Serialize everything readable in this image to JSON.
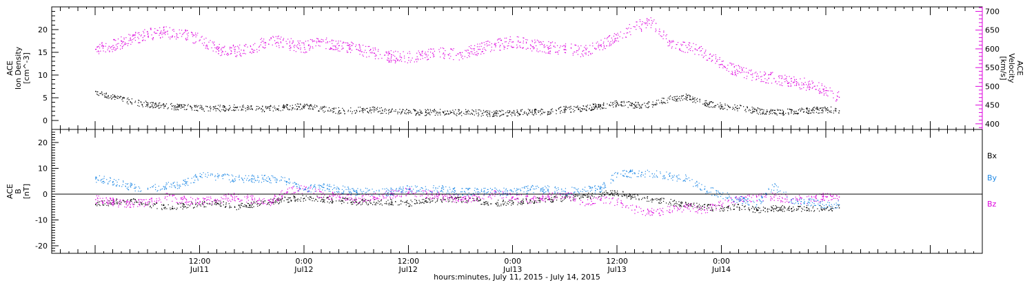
{
  "chart_data": [
    {
      "type": "scatter",
      "panel": "top",
      "ylabel": [
        "ACE",
        "Ion Density",
        "[cm^-3]"
      ],
      "ylim": [
        -2,
        25
      ],
      "y_ticks": [
        0,
        5,
        10,
        15,
        20
      ],
      "ylabel_right": [
        "ACE",
        "Velocity",
        "[km/s]"
      ],
      "ylim_right": [
        385,
        712
      ],
      "y_ticks_right": [
        400,
        450,
        500,
        550,
        600,
        650,
        700
      ],
      "right_axis_color": "#dd00dd",
      "series": [
        {
          "axis": "left",
          "color": "#000000",
          "x": [
            0,
            2,
            4,
            6,
            8,
            10,
            12,
            14,
            16,
            18,
            20,
            22,
            24,
            26,
            28,
            30,
            32,
            34,
            36,
            38,
            40,
            42,
            44,
            46,
            48,
            50,
            52,
            54,
            56,
            58,
            60,
            62,
            64,
            66,
            68,
            70,
            72,
            74,
            76,
            78,
            80,
            82,
            84,
            85.5
          ],
          "values": [
            6.5,
            5.2,
            4.2,
            3.6,
            3.2,
            3.0,
            2.8,
            2.7,
            2.9,
            2.6,
            2.7,
            2.9,
            3.1,
            2.6,
            2.2,
            2.3,
            2.4,
            2.0,
            1.9,
            1.8,
            1.9,
            1.8,
            1.7,
            1.6,
            1.7,
            1.9,
            2.0,
            2.5,
            2.7,
            3.2,
            3.8,
            3.4,
            3.6,
            4.8,
            5.2,
            3.8,
            3.2,
            2.8,
            2.2,
            1.8,
            2.0,
            2.2,
            2.5,
            2.2
          ]
        },
        {
          "axis": "right",
          "color": "#dd00dd",
          "x": [
            0,
            2,
            4,
            6,
            8,
            10,
            12,
            14,
            16,
            18,
            20,
            22,
            24,
            26,
            28,
            30,
            32,
            34,
            36,
            38,
            40,
            42,
            44,
            46,
            48,
            50,
            52,
            54,
            56,
            58,
            60,
            62,
            64,
            66,
            68,
            70,
            72,
            74,
            76,
            78,
            80,
            82,
            84,
            85.5
          ],
          "values": [
            600,
            610,
            625,
            640,
            645,
            640,
            625,
            600,
            595,
            600,
            625,
            615,
            605,
            620,
            610,
            600,
            590,
            580,
            578,
            585,
            590,
            585,
            600,
            610,
            620,
            612,
            605,
            600,
            595,
            610,
            630,
            660,
            670,
            620,
            605,
            590,
            560,
            540,
            528,
            522,
            515,
            505,
            490,
            472
          ]
        }
      ]
    },
    {
      "type": "scatter",
      "panel": "bottom",
      "ylabel": [
        "ACE",
        "B",
        "[nT]"
      ],
      "ylim": [
        -23,
        25
      ],
      "y_ticks": [
        -20,
        -10,
        0,
        10,
        20
      ],
      "legend": [
        "Bx",
        "By",
        "Bz"
      ],
      "legend_position": "right",
      "series": [
        {
          "name": "Bx",
          "color": "#000000",
          "x": [
            0,
            2,
            4,
            6,
            8,
            10,
            12,
            14,
            16,
            18,
            20,
            22,
            24,
            26,
            28,
            30,
            32,
            34,
            36,
            38,
            40,
            42,
            44,
            46,
            48,
            50,
            52,
            54,
            56,
            58,
            60,
            62,
            64,
            66,
            68,
            70,
            72,
            74,
            76,
            78,
            80,
            82,
            84,
            85.5
          ],
          "values": [
            -4,
            -3,
            -2.5,
            -4,
            -5,
            -4.5,
            -4,
            -3.5,
            -5,
            -4,
            -3,
            -2,
            -1.5,
            -2,
            -2.5,
            -3,
            -3,
            -3,
            -3.5,
            -2.5,
            -2,
            -2,
            -2.5,
            -3.5,
            -3,
            -2.5,
            -2,
            -1.5,
            -1,
            0,
            0.5,
            -1,
            -2,
            -3,
            -4,
            -5,
            -5.5,
            -5,
            -6,
            -5.5,
            -5.5,
            -5.5,
            -5.5,
            -5.2
          ]
        },
        {
          "name": "By",
          "color": "#1e88e5",
          "x": [
            0,
            2,
            4,
            6,
            8,
            10,
            12,
            14,
            16,
            18,
            20,
            22,
            24,
            26,
            28,
            30,
            32,
            34,
            36,
            38,
            40,
            42,
            44,
            46,
            48,
            50,
            52,
            54,
            56,
            58,
            60,
            62,
            64,
            66,
            68,
            70,
            72,
            74,
            76,
            78,
            80,
            82,
            84,
            85.5
          ],
          "values": [
            6,
            5,
            3,
            2,
            3,
            4,
            7,
            7,
            6,
            6,
            6,
            5,
            2,
            3,
            2,
            1,
            1,
            1,
            2,
            2,
            2,
            1,
            1,
            1,
            1,
            2,
            2,
            1,
            2,
            2,
            8,
            8,
            8,
            7,
            6,
            2,
            0,
            -2,
            -4,
            3,
            -2,
            -3,
            -4,
            -4
          ]
        },
        {
          "name": "Bz",
          "color": "#dd00dd",
          "x": [
            0,
            2,
            4,
            6,
            8,
            10,
            12,
            14,
            16,
            18,
            20,
            22,
            24,
            26,
            28,
            30,
            32,
            34,
            36,
            38,
            40,
            42,
            44,
            46,
            48,
            50,
            52,
            54,
            56,
            58,
            60,
            62,
            64,
            66,
            68,
            70,
            72,
            74,
            76,
            78,
            80,
            82,
            84,
            85.5
          ],
          "values": [
            -2,
            -3,
            -4,
            -3,
            -1,
            -2,
            -3,
            -2,
            -1,
            -2,
            -3,
            1,
            2,
            0,
            -1,
            -2,
            -1,
            0,
            1,
            0,
            -1,
            -2,
            -1,
            0,
            -1,
            -2,
            -1,
            0,
            -3,
            -2,
            -3,
            -6,
            -7,
            -6,
            -5,
            -6,
            -4,
            -2,
            -1,
            -1,
            -2,
            -2,
            -1,
            -1
          ]
        }
      ]
    }
  ],
  "x_axis": {
    "xlim_hours": [
      -5,
      102
    ],
    "ticks": [
      {
        "hour": 12,
        "time": "12:00",
        "date": "Jul11"
      },
      {
        "hour": 24,
        "time": "0:00",
        "date": "Jul12"
      },
      {
        "hour": 36,
        "time": "12:00",
        "date": "Jul12"
      },
      {
        "hour": 48,
        "time": "0:00",
        "date": "Jul13"
      },
      {
        "hour": 60,
        "time": "12:00",
        "date": "Jul13"
      },
      {
        "hour": 72,
        "time": "0:00",
        "date": "Jul14"
      }
    ],
    "title": "hours:minutes, July 11, 2015 - July 14, 2015"
  }
}
